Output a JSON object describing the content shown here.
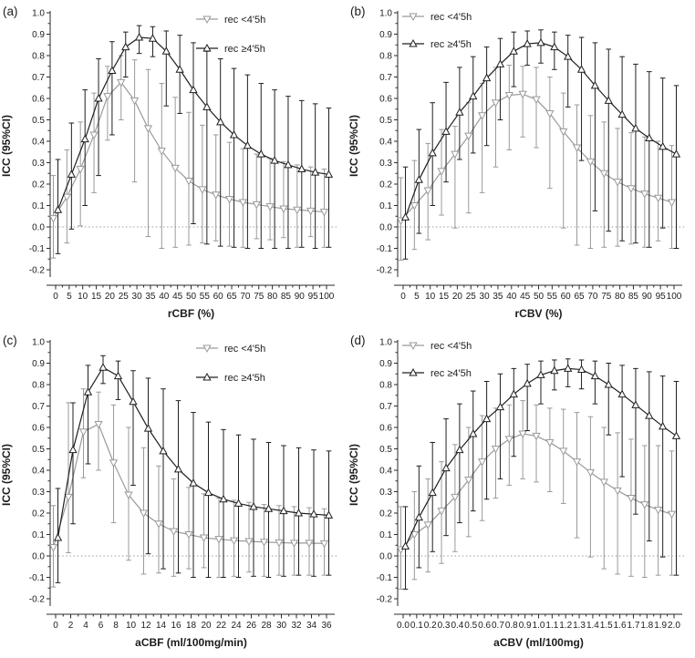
{
  "figure": {
    "ylabel": "ICC (95%CI)",
    "background": "#ffffff",
    "axis_color": "#2a2a2a",
    "zero_line_color": "#9b9b9b",
    "legend": [
      "rec <4'5h",
      "rec ≥4'5h"
    ]
  },
  "chart_data": [
    {
      "type": "line",
      "panel_label": "(a)",
      "xlabel": "rCBF (%)",
      "ylabel": "ICC (95%CI)",
      "ylim": [
        -0.2,
        1.0
      ],
      "y_tick_step": 0.1,
      "grid": false,
      "zero_line": true,
      "legend_position": "top-right",
      "x": [
        0,
        5,
        10,
        15,
        20,
        25,
        30,
        35,
        40,
        45,
        50,
        55,
        60,
        65,
        70,
        75,
        80,
        85,
        90,
        95,
        100
      ],
      "x_tick_labels": [
        "0",
        "5",
        "10",
        "15",
        "20",
        "25",
        "30",
        "35",
        "40",
        "45",
        "50",
        "55",
        "60",
        "65",
        "70",
        "75",
        "80",
        "85",
        "90",
        "95",
        "100"
      ],
      "series": [
        {
          "name": "rec <4'5h",
          "marker": "triangle-down",
          "color": "#9a9a9a",
          "values": [
            0.04,
            0.14,
            0.27,
            0.43,
            0.61,
            0.675,
            0.59,
            0.46,
            0.355,
            0.275,
            0.215,
            0.175,
            0.15,
            0.13,
            0.115,
            0.105,
            0.095,
            0.085,
            0.08,
            0.075,
            0.07
          ],
          "ci_low": [
            -0.145,
            -0.075,
            0.005,
            0.16,
            0.405,
            0.5,
            0.21,
            -0.045,
            -0.1,
            -0.095,
            -0.085,
            -0.075,
            -0.065,
            -0.09,
            -0.095,
            -0.055,
            -0.06,
            -0.05,
            -0.095,
            -0.045,
            -0.095
          ],
          "ci_high": [
            0.24,
            0.36,
            0.49,
            0.625,
            0.75,
            0.8,
            0.78,
            0.735,
            0.67,
            0.605,
            0.535,
            0.475,
            0.43,
            0.395,
            0.365,
            0.34,
            0.32,
            0.305,
            0.29,
            0.28,
            0.27
          ]
        },
        {
          "name": "rec ≥4'5h",
          "marker": "triangle-up",
          "color": "#1f1f1f",
          "values": [
            0.08,
            0.245,
            0.41,
            0.6,
            0.73,
            0.84,
            0.885,
            0.88,
            0.82,
            0.735,
            0.64,
            0.56,
            0.49,
            0.43,
            0.38,
            0.34,
            0.31,
            0.29,
            0.27,
            0.255,
            0.245
          ],
          "ci_low": [
            -0.125,
            -0.01,
            0.1,
            0.24,
            0.43,
            0.7,
            0.81,
            0.795,
            0.565,
            0.53,
            0.015,
            -0.08,
            -0.09,
            -0.095,
            -0.1,
            -0.1,
            -0.1,
            -0.1,
            -0.095,
            -0.1,
            -0.095
          ],
          "ci_high": [
            0.315,
            0.485,
            0.64,
            0.785,
            0.865,
            0.91,
            0.94,
            0.935,
            0.915,
            0.895,
            0.86,
            0.82,
            0.785,
            0.74,
            0.71,
            0.67,
            0.64,
            0.61,
            0.59,
            0.575,
            0.555
          ]
        }
      ]
    },
    {
      "type": "line",
      "panel_label": "(b)",
      "xlabel": "rCBV (%)",
      "ylabel": "ICC (95%CI)",
      "ylim": [
        -0.2,
        1.0
      ],
      "y_tick_step": 0.1,
      "grid": false,
      "zero_line": true,
      "legend_position": "top-left",
      "x": [
        0,
        5,
        10,
        15,
        20,
        25,
        30,
        35,
        40,
        45,
        50,
        55,
        60,
        65,
        70,
        75,
        80,
        85,
        90,
        95,
        100
      ],
      "x_tick_labels": [
        "0",
        "5",
        "10",
        "15",
        "20",
        "25",
        "30",
        "35",
        "40",
        "45",
        "50",
        "55",
        "60",
        "65",
        "70",
        "75",
        "80",
        "85",
        "90",
        "95",
        "100"
      ],
      "series": [
        {
          "name": "rec <4'5h",
          "marker": "triangle-down",
          "color": "#9a9a9a",
          "values": [
            0.03,
            0.1,
            0.17,
            0.26,
            0.34,
            0.425,
            0.52,
            0.58,
            0.615,
            0.62,
            0.595,
            0.53,
            0.445,
            0.37,
            0.305,
            0.25,
            0.21,
            0.18,
            0.155,
            0.135,
            0.115
          ],
          "ci_low": [
            -0.155,
            -0.105,
            -0.06,
            0.055,
            -0.005,
            0.065,
            0.16,
            0.28,
            0.36,
            0.42,
            0.37,
            0.18,
            -0.005,
            -0.085,
            -0.1,
            -0.095,
            -0.09,
            -0.08,
            -0.095,
            -0.065,
            -0.1
          ],
          "ci_high": [
            0.23,
            0.31,
            0.39,
            0.455,
            0.47,
            0.58,
            0.67,
            0.745,
            0.755,
            0.75,
            0.745,
            0.7,
            0.625,
            0.57,
            0.52,
            0.49,
            0.46,
            0.44,
            0.42,
            0.4,
            0.38
          ]
        },
        {
          "name": "rec ≥4'5h",
          "marker": "triangle-up",
          "color": "#1f1f1f",
          "values": [
            0.045,
            0.22,
            0.345,
            0.445,
            0.535,
            0.61,
            0.695,
            0.76,
            0.82,
            0.855,
            0.86,
            0.84,
            0.795,
            0.735,
            0.66,
            0.59,
            0.525,
            0.46,
            0.415,
            0.375,
            0.34
          ],
          "ci_low": [
            -0.15,
            -0.03,
            0.1,
            0.21,
            0.315,
            0.345,
            0.38,
            0.5,
            0.655,
            0.755,
            0.765,
            0.735,
            0.56,
            0.31,
            0.075,
            -0.02,
            -0.065,
            -0.075,
            -0.095,
            -0.005,
            -0.1
          ],
          "ci_high": [
            0.28,
            0.455,
            0.58,
            0.675,
            0.745,
            0.795,
            0.84,
            0.88,
            0.91,
            0.915,
            0.92,
            0.91,
            0.895,
            0.885,
            0.86,
            0.83,
            0.795,
            0.76,
            0.725,
            0.695,
            0.66
          ]
        }
      ]
    },
    {
      "type": "line",
      "panel_label": "(c)",
      "xlabel": "aCBF (ml/100mg/min)",
      "ylabel": "ICC (95%CI)",
      "ylim": [
        -0.2,
        1.0
      ],
      "y_tick_step": 0.1,
      "grid": false,
      "zero_line": true,
      "legend_position": "top-right",
      "x": [
        0,
        2,
        4,
        6,
        8,
        10,
        12,
        14,
        16,
        18,
        20,
        22,
        24,
        26,
        28,
        30,
        32,
        34,
        36
      ],
      "x_tick_labels": [
        "0",
        "2",
        "4",
        "6",
        "8",
        "10",
        "12",
        "14",
        "16",
        "18",
        "20",
        "22",
        "24",
        "26",
        "28",
        "30",
        "32",
        "34",
        "36"
      ],
      "series": [
        {
          "name": "rec <4'5h",
          "marker": "triangle-down",
          "color": "#9a9a9a",
          "values": [
            0.04,
            0.275,
            0.58,
            0.615,
            0.435,
            0.285,
            0.2,
            0.15,
            0.115,
            0.1,
            0.085,
            0.078,
            0.072,
            0.068,
            0.065,
            0.062,
            0.06,
            0.06,
            0.058
          ],
          "ci_low": [
            -0.145,
            0.015,
            0.365,
            0.4,
            0.155,
            -0.02,
            -0.085,
            -0.08,
            -0.095,
            -0.06,
            -0.055,
            -0.1,
            -0.095,
            -0.075,
            -0.095,
            -0.09,
            -0.09,
            -0.09,
            -0.09
          ],
          "ci_high": [
            0.235,
            0.715,
            0.78,
            0.765,
            0.705,
            0.6,
            0.505,
            0.42,
            0.36,
            0.32,
            0.29,
            0.27,
            0.26,
            0.25,
            0.24,
            0.235,
            0.23,
            0.225,
            0.22
          ]
        },
        {
          "name": "rec ≥4'5h",
          "marker": "triangle-up",
          "color": "#1f1f1f",
          "values": [
            0.085,
            0.495,
            0.765,
            0.88,
            0.84,
            0.72,
            0.595,
            0.49,
            0.405,
            0.34,
            0.295,
            0.265,
            0.245,
            0.23,
            0.22,
            0.21,
            0.2,
            0.195,
            0.19
          ],
          "ci_low": [
            -0.125,
            0.15,
            0.43,
            0.805,
            0.73,
            0.33,
            0.01,
            -0.06,
            -0.08,
            -0.1,
            -0.1,
            -0.1,
            -0.1,
            -0.095,
            -0.1,
            -0.095,
            -0.09,
            -0.095,
            -0.09
          ],
          "ci_high": [
            0.315,
            0.715,
            0.89,
            0.935,
            0.91,
            0.865,
            0.83,
            0.78,
            0.725,
            0.67,
            0.625,
            0.59,
            0.565,
            0.545,
            0.53,
            0.515,
            0.505,
            0.495,
            0.49
          ]
        }
      ]
    },
    {
      "type": "line",
      "panel_label": "(d)",
      "xlabel": "aCBV (ml/100mg)",
      "ylabel": "ICC (95%CI)",
      "ylim": [
        -0.2,
        1.0
      ],
      "y_tick_step": 0.1,
      "grid": false,
      "zero_line": true,
      "legend_position": "top-left",
      "x": [
        0.0,
        0.1,
        0.2,
        0.3,
        0.4,
        0.5,
        0.6,
        0.7,
        0.8,
        0.9,
        1.0,
        1.1,
        1.2,
        1.3,
        1.4,
        1.5,
        1.6,
        1.7,
        1.8,
        1.9,
        2.0
      ],
      "x_tick_labels": [
        "0.0",
        "0.1",
        "0.2",
        "0.3",
        "0.4",
        "0.5",
        "0.6",
        "0.7",
        "0.8",
        "0.9",
        "1.0",
        "1.1",
        "1.2",
        "1.3",
        "1.4",
        "1.5",
        "1.6",
        "1.7",
        "1.8",
        "1.9",
        "2.0"
      ],
      "series": [
        {
          "name": "rec <4'5h",
          "marker": "triangle-down",
          "color": "#9a9a9a",
          "values": [
            0.03,
            0.1,
            0.145,
            0.21,
            0.275,
            0.355,
            0.44,
            0.5,
            0.545,
            0.57,
            0.56,
            0.53,
            0.49,
            0.44,
            0.39,
            0.345,
            0.305,
            0.27,
            0.24,
            0.215,
            0.195
          ],
          "ci_low": [
            -0.155,
            -0.11,
            -0.075,
            -0.035,
            0.02,
            0.09,
            0.165,
            0.27,
            0.33,
            0.36,
            0.345,
            0.3,
            0.245,
            0.085,
            -0.005,
            -0.06,
            -0.085,
            -0.095,
            -0.1,
            -0.09,
            -0.09
          ],
          "ci_high": [
            0.23,
            0.3,
            0.36,
            0.44,
            0.52,
            0.6,
            0.655,
            0.69,
            0.705,
            0.725,
            0.705,
            0.69,
            0.685,
            0.67,
            0.65,
            0.6,
            0.575,
            0.545,
            0.515,
            0.515,
            0.49
          ]
        },
        {
          "name": "rec ≥4'5h",
          "marker": "triangle-up",
          "color": "#1f1f1f",
          "values": [
            0.045,
            0.18,
            0.295,
            0.41,
            0.495,
            0.57,
            0.64,
            0.695,
            0.755,
            0.805,
            0.845,
            0.865,
            0.875,
            0.87,
            0.84,
            0.8,
            0.755,
            0.705,
            0.655,
            0.605,
            0.56
          ],
          "ci_low": [
            -0.155,
            -0.055,
            0.02,
            0.095,
            0.155,
            0.21,
            0.265,
            0.36,
            0.465,
            0.585,
            0.71,
            0.775,
            0.79,
            0.78,
            0.71,
            0.565,
            0.37,
            0.195,
            0.07,
            -0.005,
            -0.09
          ],
          "ci_high": [
            0.23,
            0.42,
            0.53,
            0.64,
            0.71,
            0.77,
            0.815,
            0.85,
            0.875,
            0.895,
            0.91,
            0.915,
            0.92,
            0.915,
            0.91,
            0.9,
            0.89,
            0.875,
            0.86,
            0.84,
            0.815
          ]
        }
      ]
    }
  ]
}
